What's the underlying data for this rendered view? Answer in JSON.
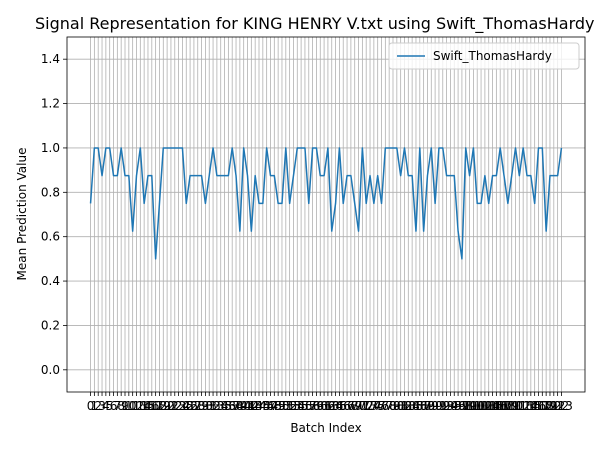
{
  "chart_data": {
    "type": "line",
    "title": "Signal Representation for KING HENRY V.txt using Swift_ThomasHardy",
    "x_label": "Batch Index",
    "y_label": "Mean Prediction Value",
    "x": [
      0,
      1,
      2,
      3,
      4,
      5,
      6,
      7,
      8,
      9,
      10,
      11,
      12,
      13,
      14,
      15,
      16,
      17,
      18,
      19,
      20,
      21,
      22,
      23,
      24,
      25,
      26,
      27,
      28,
      29,
      30,
      31,
      32,
      33,
      34,
      35,
      36,
      37,
      38,
      39,
      40,
      41,
      42,
      43,
      44,
      45,
      46,
      47,
      48,
      49,
      50,
      51,
      52,
      53,
      54,
      55,
      56,
      57,
      58,
      59,
      60,
      61,
      62,
      63,
      64,
      65,
      66,
      67,
      68,
      69,
      70,
      71,
      72,
      73,
      74,
      75,
      76,
      77,
      78,
      79,
      80,
      81,
      82,
      83,
      84,
      85,
      86,
      87,
      88,
      89,
      90,
      91,
      92,
      93,
      94,
      95,
      96,
      97,
      98,
      99,
      100,
      101,
      102,
      103,
      104,
      105,
      106,
      107,
      108,
      109,
      110,
      111,
      112,
      113,
      114,
      115,
      116,
      117,
      118,
      119,
      120,
      121,
      122,
      123
    ],
    "series": [
      {
        "name": "Swift_ThomasHardy",
        "color": "#1f77b4",
        "values": [
          0.75,
          1,
          1,
          0.875,
          1,
          1,
          0.875,
          0.875,
          1,
          0.875,
          0.875,
          0.625,
          0.875,
          1,
          0.75,
          0.875,
          0.875,
          0.5,
          0.75,
          1,
          1,
          1,
          1,
          1,
          1,
          0.75,
          0.875,
          0.875,
          0.875,
          0.875,
          0.75,
          0.875,
          1,
          0.875,
          0.875,
          0.875,
          0.875,
          1,
          0.875,
          0.625,
          1,
          0.875,
          0.625,
          0.875,
          0.75,
          0.75,
          1,
          0.875,
          0.875,
          0.75,
          0.75,
          1,
          0.75,
          0.875,
          1,
          1,
          1,
          0.75,
          1,
          1,
          0.875,
          0.875,
          1,
          0.625,
          0.75,
          1,
          0.75,
          0.875,
          0.875,
          0.75,
          0.625,
          1,
          0.75,
          0.875,
          0.75,
          0.875,
          0.75,
          1,
          1,
          1,
          1,
          0.875,
          1,
          0.875,
          0.875,
          0.625,
          1,
          0.625,
          0.875,
          1,
          0.75,
          1,
          1,
          0.875,
          0.875,
          0.875,
          0.625,
          0.5,
          1,
          0.875,
          1,
          0.75,
          0.75,
          0.875,
          0.75,
          0.875,
          0.875,
          1,
          0.875,
          0.75,
          0.875,
          1,
          0.875,
          1,
          0.875,
          0.875,
          0.75,
          1,
          1,
          0.625,
          0.875,
          0.875,
          0.875,
          1
        ]
      }
    ],
    "xlim": [
      -6.15,
      129.15
    ],
    "xticks": [
      0,
      1,
      2,
      3,
      4,
      5,
      6,
      7,
      8,
      9,
      10,
      11,
      12,
      13,
      14,
      15,
      16,
      17,
      18,
      19,
      20,
      21,
      22,
      23,
      24,
      25,
      26,
      27,
      28,
      29,
      30,
      31,
      32,
      33,
      34,
      35,
      36,
      37,
      38,
      39,
      40,
      41,
      42,
      43,
      44,
      45,
      46,
      47,
      48,
      49,
      50,
      51,
      52,
      53,
      54,
      55,
      56,
      57,
      58,
      59,
      60,
      61,
      62,
      63,
      64,
      65,
      66,
      67,
      68,
      69,
      70,
      71,
      72,
      73,
      74,
      75,
      76,
      77,
      78,
      79,
      80,
      81,
      82,
      83,
      84,
      85,
      86,
      87,
      88,
      89,
      90,
      91,
      92,
      93,
      94,
      95,
      96,
      97,
      98,
      99,
      100,
      101,
      102,
      103,
      104,
      105,
      106,
      107,
      108,
      109,
      110,
      111,
      112,
      113,
      114,
      115,
      116,
      117,
      118,
      119,
      120,
      121,
      122,
      123
    ],
    "ylim": [
      -0.1,
      1.5
    ],
    "yticks": [
      {
        "value": 0,
        "label": "0.0"
      },
      {
        "value": 0.2,
        "label": "0.2"
      },
      {
        "value": 0.4,
        "label": "0.4"
      },
      {
        "value": 0.6,
        "label": "0.6"
      },
      {
        "value": 0.8,
        "label": "0.8"
      },
      {
        "value": 1,
        "label": "1.0"
      },
      {
        "value": 1.2,
        "label": "1.2"
      },
      {
        "value": 1.4,
        "label": "1.4"
      }
    ],
    "grid": true,
    "legend": "upper right"
  }
}
